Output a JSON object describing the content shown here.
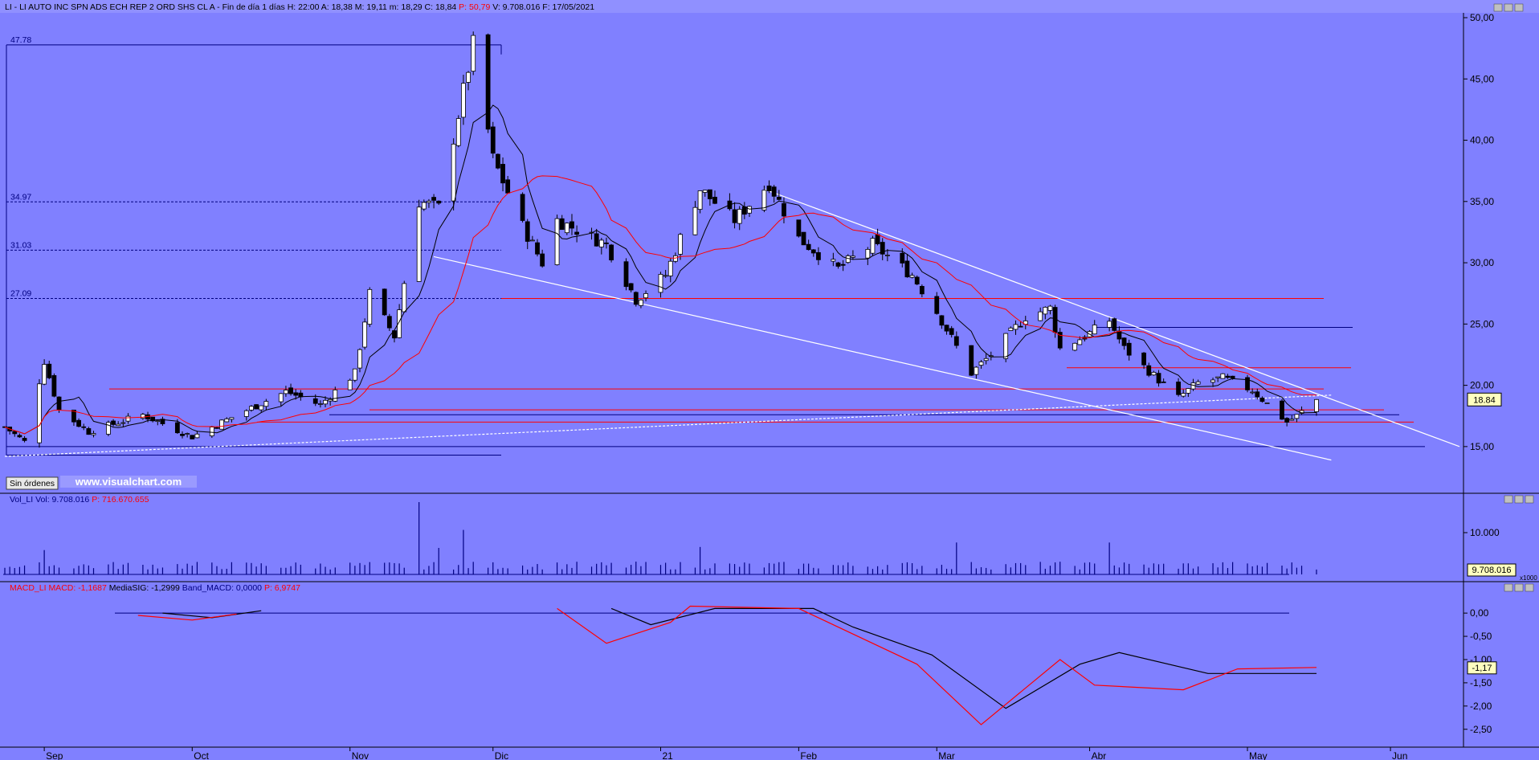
{
  "header": {
    "title": "LI - LI AUTO INC SPN ADS ECH REP 2 ORD SHS CL A",
    "timeframe": "Fin de día 1 días",
    "ohlc_text": "H: 22:00  A: 18,38  M: 19,11  m: 18,29  C: 18,84",
    "p_text": "P: 50,79",
    "vol_date_text": "V: 9.708.016  F: 17/05/2021"
  },
  "colors": {
    "background": "#8080ff",
    "up_candle": "#ffffff",
    "down_candle": "#000000",
    "ma_fast": "#000000",
    "ma_slow": "#ff0000",
    "trendline": "#ffffff",
    "support_line": "#000080",
    "macd_line": "#ff0000",
    "signal_line": "#000000"
  },
  "buttons": {
    "orders": "Sin órdenes"
  },
  "watermark": "www.visualchart.com",
  "price_panel": {
    "last_price_label": "18.84",
    "fib_labels": [
      "47.78",
      "34.97",
      "31.03",
      "27.09"
    ],
    "y_ticks": [
      "15,00",
      "20,00",
      "25,00",
      "30,00",
      "35,00",
      "40,00",
      "45,00",
      "50,00"
    ]
  },
  "volume_panel": {
    "title": "Vol_LI",
    "vol_text": "Vol: 9.708.016",
    "p_text": "P: 716.670.655",
    "y_tick": "10.000",
    "last_value_label": "9.708.016",
    "scale_label": "x1000"
  },
  "macd_panel": {
    "title": "MACD_LI",
    "macd_text": "MACD: -1,1687",
    "signal_text": "MediaSIG: -1,2999",
    "band_text": "Band_MACD: 0,0000",
    "p_text": "P: 6,9747",
    "y_ticks": [
      "0,00",
      "-0,50",
      "-1,00",
      "-1,50",
      "-2,00",
      "-2,50"
    ],
    "last_value_label": "-1,17"
  },
  "x_axis": {
    "months": [
      "Sep",
      "Oct",
      "Nov",
      "Dic",
      "21",
      "Feb",
      "Mar",
      "Abr",
      "May",
      "Jun"
    ]
  },
  "chart_data": {
    "type": "candlestick",
    "title": "LI - LI AUTO INC SPN ADS ECH REP 2 ORD SHS CL A",
    "x_range": [
      "2020-08-24",
      "2021-06-15"
    ],
    "y_range": [
      12.5,
      50
    ],
    "last_close": 18.84,
    "anchors": [
      {
        "date": "2020-08-24",
        "close": 16.6
      },
      {
        "date": "2020-08-28",
        "close": 15.4
      },
      {
        "date": "2020-09-01",
        "close": 22.0
      },
      {
        "date": "2020-09-04",
        "close": 18.0
      },
      {
        "date": "2020-09-10",
        "close": 16.2
      },
      {
        "date": "2020-09-21",
        "close": 17.6
      },
      {
        "date": "2020-10-01",
        "close": 15.8
      },
      {
        "date": "2020-10-06",
        "close": 16.8
      },
      {
        "date": "2020-10-20",
        "close": 19.5
      },
      {
        "date": "2020-10-27",
        "close": 18.4
      },
      {
        "date": "2020-11-03",
        "close": 21.0
      },
      {
        "date": "2020-11-06",
        "close": 27.5
      },
      {
        "date": "2020-11-11",
        "close": 24.0
      },
      {
        "date": "2020-11-16",
        "close": 35.0
      },
      {
        "date": "2020-11-20",
        "close": 34.5
      },
      {
        "date": "2020-11-25",
        "close": 44.0
      },
      {
        "date": "2020-11-27",
        "close": 47.78
      },
      {
        "date": "2020-12-01",
        "close": 38.5
      },
      {
        "date": "2020-12-07",
        "close": 33.0
      },
      {
        "date": "2020-12-11",
        "close": 30.0
      },
      {
        "date": "2020-12-14",
        "close": 33.5
      },
      {
        "date": "2020-12-24",
        "close": 31.5
      },
      {
        "date": "2020-12-30",
        "close": 27.0
      },
      {
        "date": "2021-01-05",
        "close": 29.0
      },
      {
        "date": "2021-01-12",
        "close": 36.0
      },
      {
        "date": "2021-01-19",
        "close": 33.5
      },
      {
        "date": "2021-01-26",
        "close": 36.5
      },
      {
        "date": "2021-02-01",
        "close": 32.0
      },
      {
        "date": "2021-02-09",
        "close": 29.5
      },
      {
        "date": "2021-02-16",
        "close": 31.5
      },
      {
        "date": "2021-02-24",
        "close": 29.0
      },
      {
        "date": "2021-03-01",
        "close": 26.0
      },
      {
        "date": "2021-03-08",
        "close": 21.0
      },
      {
        "date": "2021-03-12",
        "close": 22.5
      },
      {
        "date": "2021-03-19",
        "close": 25.6
      },
      {
        "date": "2021-03-24",
        "close": 26.3
      },
      {
        "date": "2021-03-26",
        "close": 23.0
      },
      {
        "date": "2021-03-31",
        "close": 24.0
      },
      {
        "date": "2021-04-05",
        "close": 25.3
      },
      {
        "date": "2021-04-08",
        "close": 23.0
      },
      {
        "date": "2021-04-14",
        "close": 20.8
      },
      {
        "date": "2021-04-19",
        "close": 19.0
      },
      {
        "date": "2021-04-23",
        "close": 20.2
      },
      {
        "date": "2021-04-28",
        "close": 20.6
      },
      {
        "date": "2021-05-04",
        "close": 19.6
      },
      {
        "date": "2021-05-11",
        "close": 17.0
      },
      {
        "date": "2021-05-13",
        "close": 17.5
      },
      {
        "date": "2021-05-17",
        "close": 18.84
      }
    ],
    "volume_spike_dates": [
      "2020-09-01",
      "2020-11-16",
      "2020-11-20",
      "2020-11-25",
      "2021-01-12",
      "2021-03-05",
      "2021-04-05"
    ],
    "macd_points": [
      {
        "date": "2020-09-20",
        "value": -0.05
      },
      {
        "date": "2020-10-01",
        "value": -0.15
      },
      {
        "date": "2020-10-10",
        "value": -0.02
      },
      {
        "date": "2020-12-14",
        "value": 0.1
      },
      {
        "date": "2020-12-24",
        "value": -0.65
      },
      {
        "date": "2021-01-06",
        "value": -0.2
      },
      {
        "date": "2021-01-10",
        "value": 0.15
      },
      {
        "date": "2021-02-01",
        "value": 0.1
      },
      {
        "date": "2021-02-25",
        "value": -1.1
      },
      {
        "date": "2021-03-10",
        "value": -2.4
      },
      {
        "date": "2021-03-26",
        "value": -1.0
      },
      {
        "date": "2021-04-02",
        "value": -1.55
      },
      {
        "date": "2021-04-20",
        "value": -1.65
      },
      {
        "date": "2021-05-01",
        "value": -1.2
      },
      {
        "date": "2021-05-17",
        "value": -1.17
      }
    ],
    "signal_points": [
      {
        "date": "2020-09-25",
        "value": 0.0
      },
      {
        "date": "2020-10-05",
        "value": -0.1
      },
      {
        "date": "2020-10-15",
        "value": 0.05
      },
      {
        "date": "2020-12-25",
        "value": 0.1
      },
      {
        "date": "2021-01-02",
        "value": -0.25
      },
      {
        "date": "2021-01-15",
        "value": 0.1
      },
      {
        "date": "2021-02-04",
        "value": 0.1
      },
      {
        "date": "2021-02-12",
        "value": -0.3
      },
      {
        "date": "2021-02-28",
        "value": -0.9
      },
      {
        "date": "2021-03-15",
        "value": -2.05
      },
      {
        "date": "2021-03-30",
        "value": -1.1
      },
      {
        "date": "2021-04-07",
        "value": -0.85
      },
      {
        "date": "2021-04-25",
        "value": -1.3
      },
      {
        "date": "2021-05-10",
        "value": -1.3
      },
      {
        "date": "2021-05-17",
        "value": -1.3
      }
    ],
    "horizontal_levels": [
      {
        "value": 47.78,
        "style": "solid",
        "color": "#000080",
        "label": "47.78"
      },
      {
        "value": 34.97,
        "style": "dashed",
        "color": "#000080",
        "label": "34.97"
      },
      {
        "value": 31.03,
        "style": "dashed",
        "color": "#000080",
        "label": "31.03"
      },
      {
        "value": 27.09,
        "style": "dashed",
        "color": "#000080",
        "label": "27.09"
      },
      {
        "value": 27.09,
        "style": "solid",
        "color": "#ff0000"
      },
      {
        "value": 24.73,
        "style": "solid",
        "color": "#000080"
      },
      {
        "value": 21.43,
        "style": "solid",
        "color": "#ff0000"
      },
      {
        "value": 19.7,
        "style": "solid",
        "color": "#ff0000"
      },
      {
        "value": 18.0,
        "style": "solid",
        "color": "#ff0000"
      },
      {
        "value": 17.6,
        "style": "solid",
        "color": "#000080"
      },
      {
        "value": 17.0,
        "style": "solid",
        "color": "#ff0000"
      },
      {
        "value": 15.0,
        "style": "solid",
        "color": "#000080"
      },
      {
        "value": 14.3,
        "style": "solid",
        "color": "#000080"
      }
    ],
    "trendlines": [
      {
        "from": {
          "date": "2021-01-25",
          "value": 36.0
        },
        "to": {
          "date": "2021-06-15",
          "value": 15.0
        },
        "color": "#ffffff"
      },
      {
        "from": {
          "date": "2020-11-19",
          "value": 30.5
        },
        "to": {
          "date": "2021-05-20",
          "value": 13.9
        },
        "color": "#ffffff"
      },
      {
        "from": {
          "date": "2020-08-24",
          "value": 14.2
        },
        "to": {
          "date": "2021-05-20",
          "value": 19.2
        },
        "color": "#ffffff",
        "style": "dashed"
      }
    ]
  }
}
